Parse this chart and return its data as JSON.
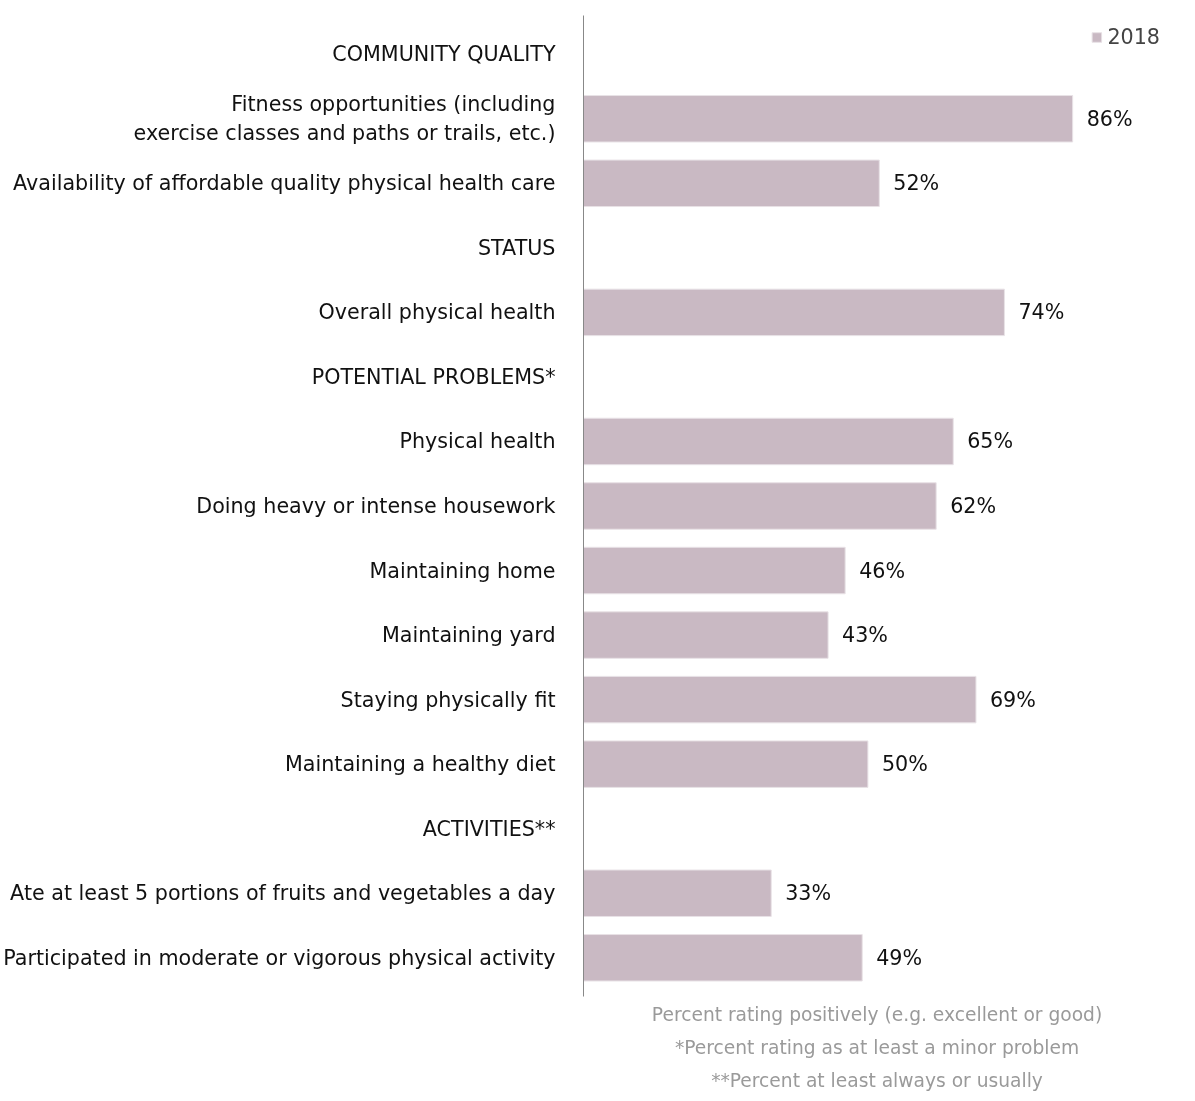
{
  "chart_data": {
    "type": "bar",
    "orientation": "horizontal",
    "categories": [
      "COMMUNITY QUALITY",
      "Fitness opportunities (including\nexercise classes and paths or trails, etc.)",
      "Availability of affordable quality physical health care",
      "STATUS",
      "Overall physical health",
      "POTENTIAL PROBLEMS*",
      "Physical health",
      "Doing heavy or intense housework",
      "Maintaining home",
      "Maintaining yard",
      "Staying physically fit",
      "Maintaining a healthy diet",
      "ACTIVITIES**",
      "Ate at least 5 portions of fruits and vegetables a day",
      "Participated in moderate or vigorous physical activity"
    ],
    "series": [
      {
        "name": "2018",
        "color": "#c9b9c3",
        "values": [
          null,
          86,
          52,
          null,
          74,
          null,
          65,
          62,
          46,
          43,
          69,
          50,
          null,
          33,
          49
        ],
        "value_labels": [
          null,
          "86%",
          "52%",
          null,
          "74%",
          null,
          "65%",
          "62%",
          "46%",
          "43%",
          "69%",
          "50%",
          null,
          "33%",
          "49%"
        ]
      }
    ],
    "legend": "top right",
    "annotations": [
      "Percent rating positively (e.g. excellent or good)",
      "*Percent rating as at least a minor problem",
      "**Percent at least always or usually"
    ]
  }
}
